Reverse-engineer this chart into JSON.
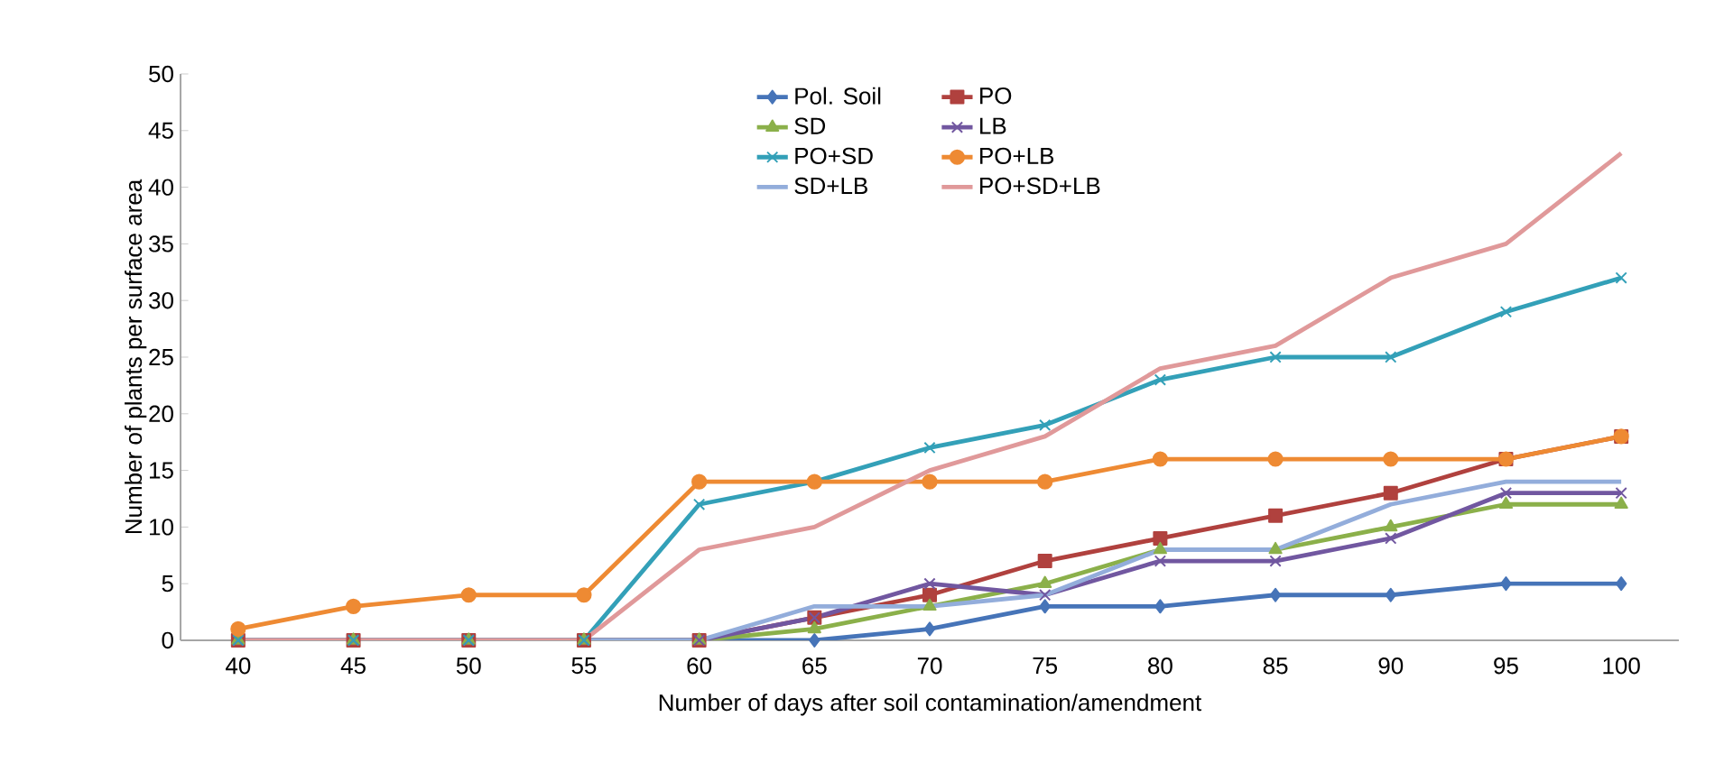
{
  "chart_data": {
    "type": "line",
    "xlabel": "Number of days after soil contamination/amendment",
    "ylabel": "Number of plants per surface area",
    "categories": [
      "40",
      "45",
      "50",
      "55",
      "60",
      "65",
      "70",
      "75",
      "80",
      "85",
      "90",
      "95",
      "100"
    ],
    "ylim": [
      0,
      50
    ],
    "yticks": [
      0,
      5,
      10,
      15,
      20,
      25,
      30,
      35,
      40,
      45,
      50
    ],
    "grid": false,
    "legend": "top",
    "series": [
      {
        "name": "Pol. Soil",
        "color": "#4674b8",
        "marker": "diamond",
        "values": [
          0,
          0,
          0,
          0,
          0,
          0,
          1,
          3,
          3,
          4,
          4,
          5,
          5
        ]
      },
      {
        "name": "PO",
        "color": "#b0413e",
        "marker": "square",
        "values": [
          0,
          0,
          0,
          0,
          0,
          2,
          4,
          7,
          9,
          11,
          13,
          16,
          18
        ]
      },
      {
        "name": "SD",
        "color": "#8bb04a",
        "marker": "triangle",
        "values": [
          0,
          0,
          0,
          0,
          0,
          1,
          3,
          5,
          8,
          8,
          10,
          12,
          12
        ]
      },
      {
        "name": "LB",
        "color": "#7157a0",
        "marker": "cross",
        "values": [
          0,
          0,
          0,
          0,
          0,
          2,
          5,
          4,
          7,
          7,
          9,
          13,
          13
        ]
      },
      {
        "name": "PO+SD",
        "color": "#33a0b8",
        "marker": "cross",
        "values": [
          0,
          0,
          0,
          0,
          12,
          14,
          17,
          19,
          23,
          25,
          25,
          29,
          32
        ]
      },
      {
        "name": "PO+LB",
        "color": "#ee8a33",
        "marker": "circle",
        "values": [
          1,
          3,
          4,
          4,
          14,
          14,
          14,
          14,
          16,
          16,
          16,
          16,
          18
        ]
      },
      {
        "name": "SD+LB",
        "color": "#93addb",
        "marker": "none",
        "values": [
          0,
          0,
          0,
          0,
          0,
          3,
          3,
          4,
          8,
          8,
          12,
          14,
          14
        ]
      },
      {
        "name": "PO+SD+LB",
        "color": "#e0999a",
        "marker": "none",
        "values": [
          0,
          0,
          0,
          0,
          8,
          10,
          15,
          18,
          24,
          26,
          32,
          35,
          43
        ]
      }
    ]
  }
}
